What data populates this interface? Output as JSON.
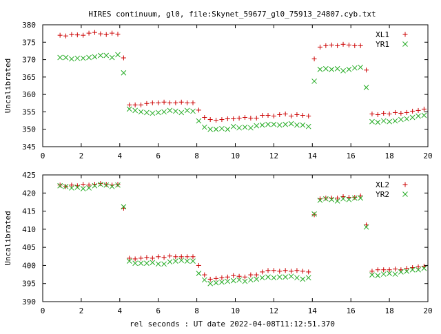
{
  "figure_title": "HIRES continuum, gl0, file:Skynet_59677_gl0_75913_24807.cyb.txt",
  "colors": {
    "series_1": "#cc0000",
    "series_2": "#22aa22",
    "axis": "#000000"
  },
  "chart_data": [
    {
      "type": "scatter",
      "title": "HIRES continuum, gl0, file:Skynet_59677_gl0_75913_24807.cyb.txt",
      "xlabel": "",
      "ylabel": "Uncalibrated",
      "xlim": [
        0,
        20
      ],
      "ylim": [
        345,
        380
      ],
      "xticks": [
        0,
        2,
        4,
        6,
        8,
        10,
        12,
        14,
        16,
        18,
        20
      ],
      "yticks": [
        345,
        350,
        355,
        360,
        365,
        370,
        375,
        380
      ],
      "grid": false,
      "legend": "top-right",
      "series": [
        {
          "name": "XL1",
          "marker": "plus",
          "x": [
            0.9,
            1.2,
            1.5,
            1.8,
            2.1,
            2.4,
            2.7,
            3.0,
            3.3,
            3.6,
            3.9,
            4.2,
            4.5,
            4.8,
            5.1,
            5.4,
            5.7,
            6.0,
            6.3,
            6.6,
            6.9,
            7.2,
            7.5,
            7.8,
            8.1,
            8.4,
            8.7,
            9.0,
            9.3,
            9.6,
            9.9,
            10.2,
            10.5,
            10.8,
            11.1,
            11.4,
            11.7,
            12.0,
            12.3,
            12.6,
            12.9,
            13.2,
            13.5,
            13.8,
            14.1,
            14.4,
            14.7,
            15.0,
            15.3,
            15.6,
            15.9,
            16.2,
            16.5,
            16.8,
            17.1,
            17.4,
            17.7,
            18.0,
            18.3,
            18.6,
            18.9,
            19.2,
            19.5,
            19.8
          ],
          "y": [
            377.0,
            376.8,
            377.2,
            377.1,
            377.0,
            377.6,
            377.8,
            377.4,
            377.2,
            377.6,
            377.3,
            370.5,
            357.0,
            357.0,
            357.0,
            357.4,
            357.6,
            357.6,
            357.8,
            357.6,
            357.6,
            357.8,
            357.6,
            357.6,
            355.5,
            353.4,
            352.8,
            352.6,
            352.8,
            353.0,
            353.0,
            353.2,
            353.4,
            353.2,
            353.2,
            354.0,
            354.0,
            353.8,
            354.2,
            354.4,
            353.8,
            354.2,
            354.0,
            353.8,
            370.2,
            373.6,
            374.0,
            374.2,
            374.0,
            374.4,
            374.2,
            374.0,
            374.0,
            367.0,
            354.4,
            354.2,
            354.6,
            354.4,
            354.8,
            354.6,
            354.8,
            355.2,
            355.4,
            355.8
          ]
        },
        {
          "name": "YR1",
          "marker": "cross",
          "x": [
            0.9,
            1.2,
            1.5,
            1.8,
            2.1,
            2.4,
            2.7,
            3.0,
            3.3,
            3.6,
            3.9,
            4.2,
            4.5,
            4.8,
            5.1,
            5.4,
            5.7,
            6.0,
            6.3,
            6.6,
            6.9,
            7.2,
            7.5,
            7.8,
            8.1,
            8.4,
            8.7,
            9.0,
            9.3,
            9.6,
            9.9,
            10.2,
            10.5,
            10.8,
            11.1,
            11.4,
            11.7,
            12.0,
            12.3,
            12.6,
            12.9,
            13.2,
            13.5,
            13.8,
            14.1,
            14.4,
            14.7,
            15.0,
            15.3,
            15.6,
            15.9,
            16.2,
            16.5,
            16.8,
            17.1,
            17.4,
            17.7,
            18.0,
            18.3,
            18.6,
            18.9,
            19.2,
            19.5,
            19.8
          ],
          "y": [
            370.6,
            370.6,
            370.2,
            370.4,
            370.4,
            370.6,
            370.8,
            371.2,
            371.2,
            370.6,
            371.4,
            366.2,
            355.8,
            355.4,
            355.0,
            354.8,
            354.6,
            354.8,
            355.0,
            355.4,
            355.2,
            354.8,
            355.4,
            355.2,
            352.4,
            350.6,
            350.0,
            350.0,
            350.2,
            350.0,
            350.8,
            350.4,
            350.6,
            350.4,
            351.0,
            351.2,
            351.4,
            351.4,
            351.2,
            351.4,
            351.6,
            351.2,
            351.2,
            350.8,
            363.8,
            367.2,
            367.4,
            367.2,
            367.4,
            366.8,
            367.2,
            367.6,
            367.8,
            362.0,
            352.2,
            352.0,
            352.4,
            352.2,
            352.4,
            352.8,
            353.0,
            353.4,
            353.8,
            354.0
          ]
        }
      ]
    },
    {
      "type": "scatter",
      "title": "",
      "xlabel": "rel seconds : UT date 2022-04-08T11:12:51.370",
      "ylabel": "Uncalibrated",
      "xlim": [
        0,
        20
      ],
      "ylim": [
        390,
        425
      ],
      "xticks": [
        0,
        2,
        4,
        6,
        8,
        10,
        12,
        14,
        16,
        18,
        20
      ],
      "yticks": [
        390,
        395,
        400,
        405,
        410,
        415,
        420,
        425
      ],
      "grid": false,
      "legend": "top-right",
      "series": [
        {
          "name": "XL2",
          "marker": "plus",
          "x": [
            0.9,
            1.2,
            1.5,
            1.8,
            2.1,
            2.4,
            2.7,
            3.0,
            3.3,
            3.6,
            3.9,
            4.2,
            4.5,
            4.8,
            5.1,
            5.4,
            5.7,
            6.0,
            6.3,
            6.6,
            6.9,
            7.2,
            7.5,
            7.8,
            8.1,
            8.4,
            8.7,
            9.0,
            9.3,
            9.6,
            9.9,
            10.2,
            10.5,
            10.8,
            11.1,
            11.4,
            11.7,
            12.0,
            12.3,
            12.6,
            12.9,
            13.2,
            13.5,
            13.8,
            14.1,
            14.4,
            14.7,
            15.0,
            15.3,
            15.6,
            15.9,
            16.2,
            16.5,
            16.8,
            17.1,
            17.4,
            17.7,
            18.0,
            18.3,
            18.6,
            18.9,
            19.2,
            19.5,
            19.8
          ],
          "y": [
            422.2,
            421.8,
            422.2,
            422.0,
            422.4,
            422.2,
            422.4,
            422.6,
            422.4,
            422.2,
            422.4,
            415.8,
            402.0,
            401.8,
            402.0,
            402.2,
            402.0,
            402.4,
            402.2,
            402.6,
            402.4,
            402.4,
            402.4,
            402.4,
            400.0,
            397.4,
            396.2,
            396.4,
            396.6,
            396.8,
            397.2,
            397.0,
            396.8,
            397.4,
            397.4,
            398.2,
            398.6,
            398.6,
            398.4,
            398.6,
            398.4,
            398.6,
            398.4,
            398.2,
            414.0,
            418.4,
            418.6,
            418.6,
            418.6,
            419.0,
            418.8,
            418.8,
            419.2,
            411.2,
            398.4,
            398.8,
            398.8,
            398.8,
            399.0,
            398.8,
            399.2,
            399.4,
            399.6,
            399.8
          ]
        },
        {
          "name": "YR2",
          "marker": "cross",
          "x": [
            0.9,
            1.2,
            1.5,
            1.8,
            2.1,
            2.4,
            2.7,
            3.0,
            3.3,
            3.6,
            3.9,
            4.2,
            4.5,
            4.8,
            5.1,
            5.4,
            5.7,
            6.0,
            6.3,
            6.6,
            6.9,
            7.2,
            7.5,
            7.8,
            8.1,
            8.4,
            8.7,
            9.0,
            9.3,
            9.6,
            9.9,
            10.2,
            10.5,
            10.8,
            11.1,
            11.4,
            11.7,
            12.0,
            12.3,
            12.6,
            12.9,
            13.2,
            13.5,
            13.8,
            14.1,
            14.4,
            14.7,
            15.0,
            15.3,
            15.6,
            15.9,
            16.2,
            16.5,
            16.8,
            17.1,
            17.4,
            17.7,
            18.0,
            18.3,
            18.6,
            18.9,
            19.2,
            19.5,
            19.8
          ],
          "y": [
            422.0,
            421.8,
            421.4,
            421.6,
            421.2,
            421.4,
            422.0,
            422.4,
            422.2,
            421.8,
            422.2,
            416.2,
            401.2,
            400.6,
            400.6,
            400.6,
            400.8,
            400.4,
            400.4,
            401.0,
            401.2,
            401.4,
            401.2,
            401.2,
            397.8,
            396.0,
            395.0,
            395.2,
            395.4,
            395.6,
            395.8,
            396.0,
            395.6,
            396.0,
            396.2,
            396.6,
            396.8,
            396.6,
            396.8,
            396.8,
            397.0,
            396.6,
            396.2,
            396.6,
            414.2,
            418.0,
            418.4,
            418.2,
            417.8,
            418.4,
            418.2,
            418.6,
            418.6,
            410.6,
            397.4,
            397.2,
            397.6,
            397.8,
            397.6,
            398.2,
            398.4,
            398.8,
            398.8,
            399.2
          ]
        }
      ]
    }
  ]
}
